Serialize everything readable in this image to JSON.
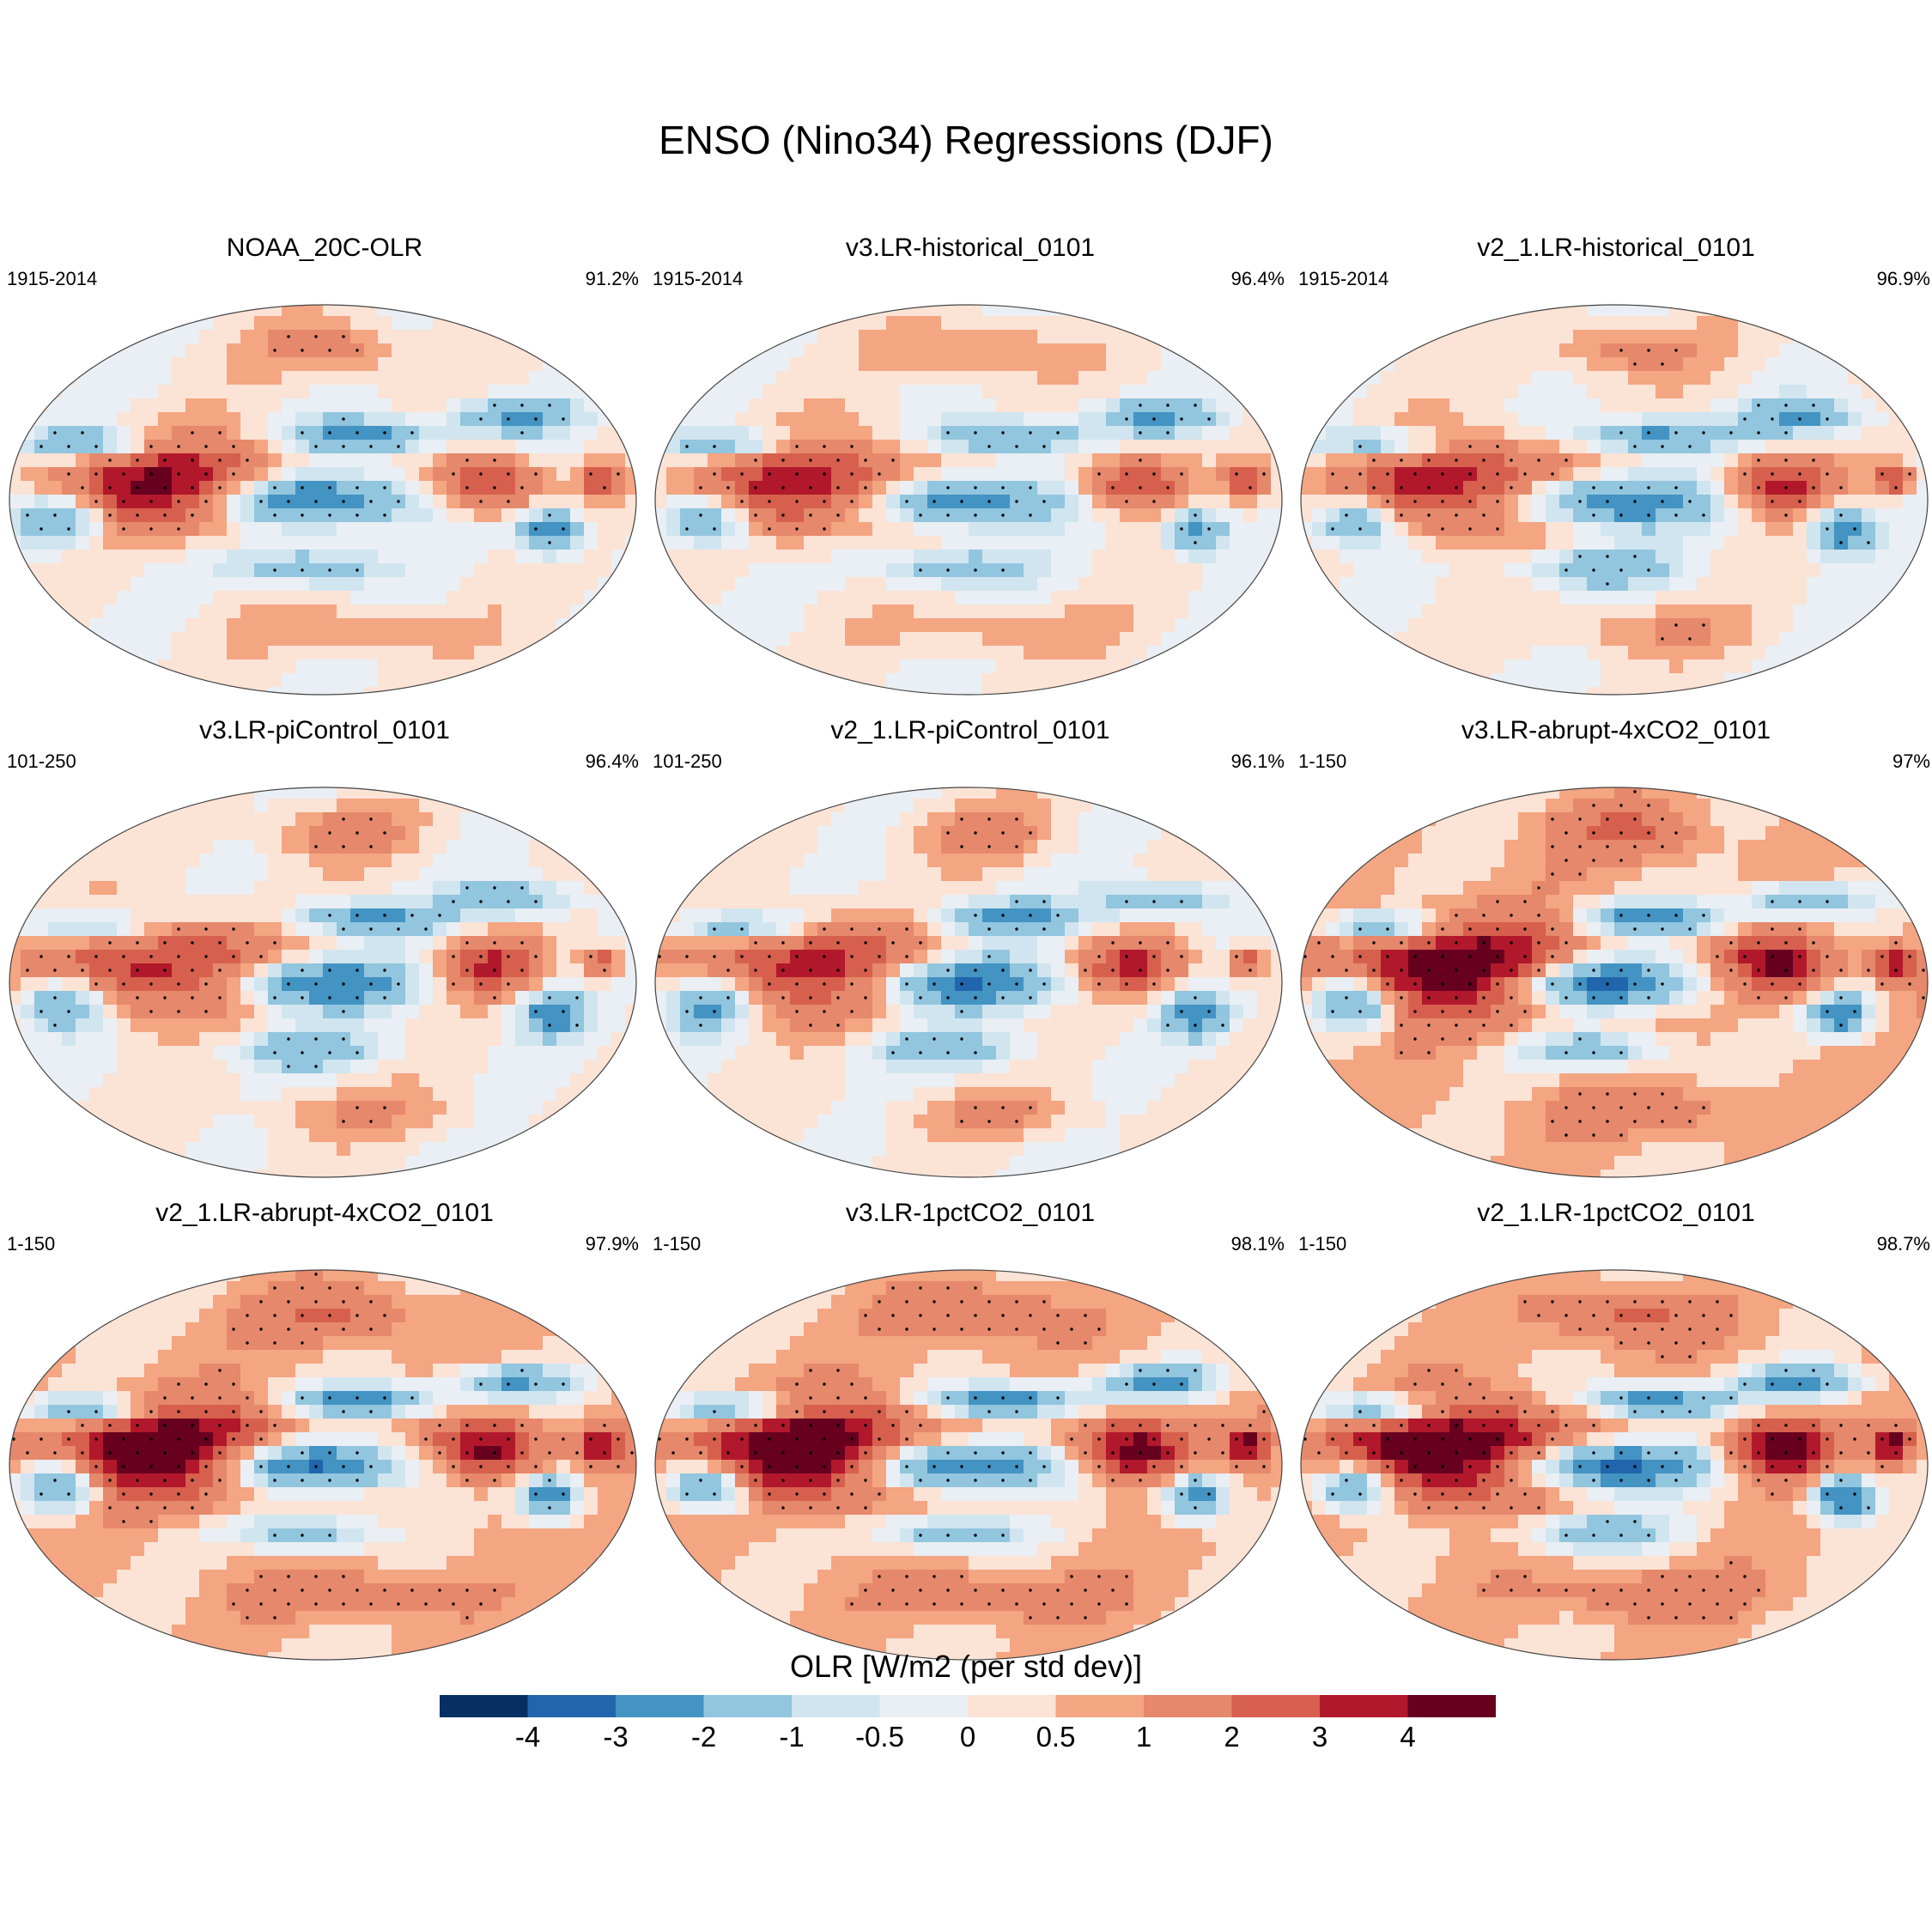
{
  "figure_title": "ENSO (Nino34) Regressions (DJF)",
  "chart_data": {
    "type": "heatmap",
    "title": "ENSO (Nino34) Regressions (DJF)",
    "colorbar": {
      "label": "OLR [W/m2 (per std dev)]",
      "ticks": [
        "-4",
        "-3",
        "-2",
        "-1",
        "-0.5",
        "0",
        "0.5",
        "1",
        "2",
        "3",
        "4"
      ],
      "levels": [
        -4,
        -3,
        -2,
        -1,
        -0.5,
        0,
        0.5,
        1,
        2,
        3,
        4
      ],
      "colors": [
        "#053061",
        "#2166ac",
        "#4393c3",
        "#92c5de",
        "#d1e5f0",
        "#e9eff4",
        "#fbe3d6",
        "#f4a582",
        "#e5886b",
        "#d6604d",
        "#b2182b",
        "#67001f"
      ]
    },
    "panels": [
      {
        "name": "NOAA_20C-OLR",
        "period": "1915-2014",
        "pct": "91.2%",
        "intensity": 1.0
      },
      {
        "name": "v3.LR-historical_0101",
        "period": "1915-2014",
        "pct": "96.4%",
        "intensity": 0.9
      },
      {
        "name": "v2_1.LR-historical_0101",
        "period": "1915-2014",
        "pct": "96.9%",
        "intensity": 0.95
      },
      {
        "name": "v3.LR-piControl_0101",
        "period": "101-250",
        "pct": "96.4%",
        "intensity": 0.9
      },
      {
        "name": "v2_1.LR-piControl_0101",
        "period": "101-250",
        "pct": "96.1%",
        "intensity": 0.9
      },
      {
        "name": "v3.LR-abrupt-4xCO2_0101",
        "period": "1-150",
        "pct": "97%",
        "intensity": 1.15
      },
      {
        "name": "v2_1.LR-abrupt-4xCO2_0101",
        "period": "1-150",
        "pct": "97.9%",
        "intensity": 1.2
      },
      {
        "name": "v3.LR-1pctCO2_0101",
        "period": "1-150",
        "pct": "98.1%",
        "intensity": 1.25
      },
      {
        "name": "v2_1.LR-1pctCO2_0101",
        "period": "1-150",
        "pct": "98.7%",
        "intensity": 1.3
      }
    ]
  }
}
